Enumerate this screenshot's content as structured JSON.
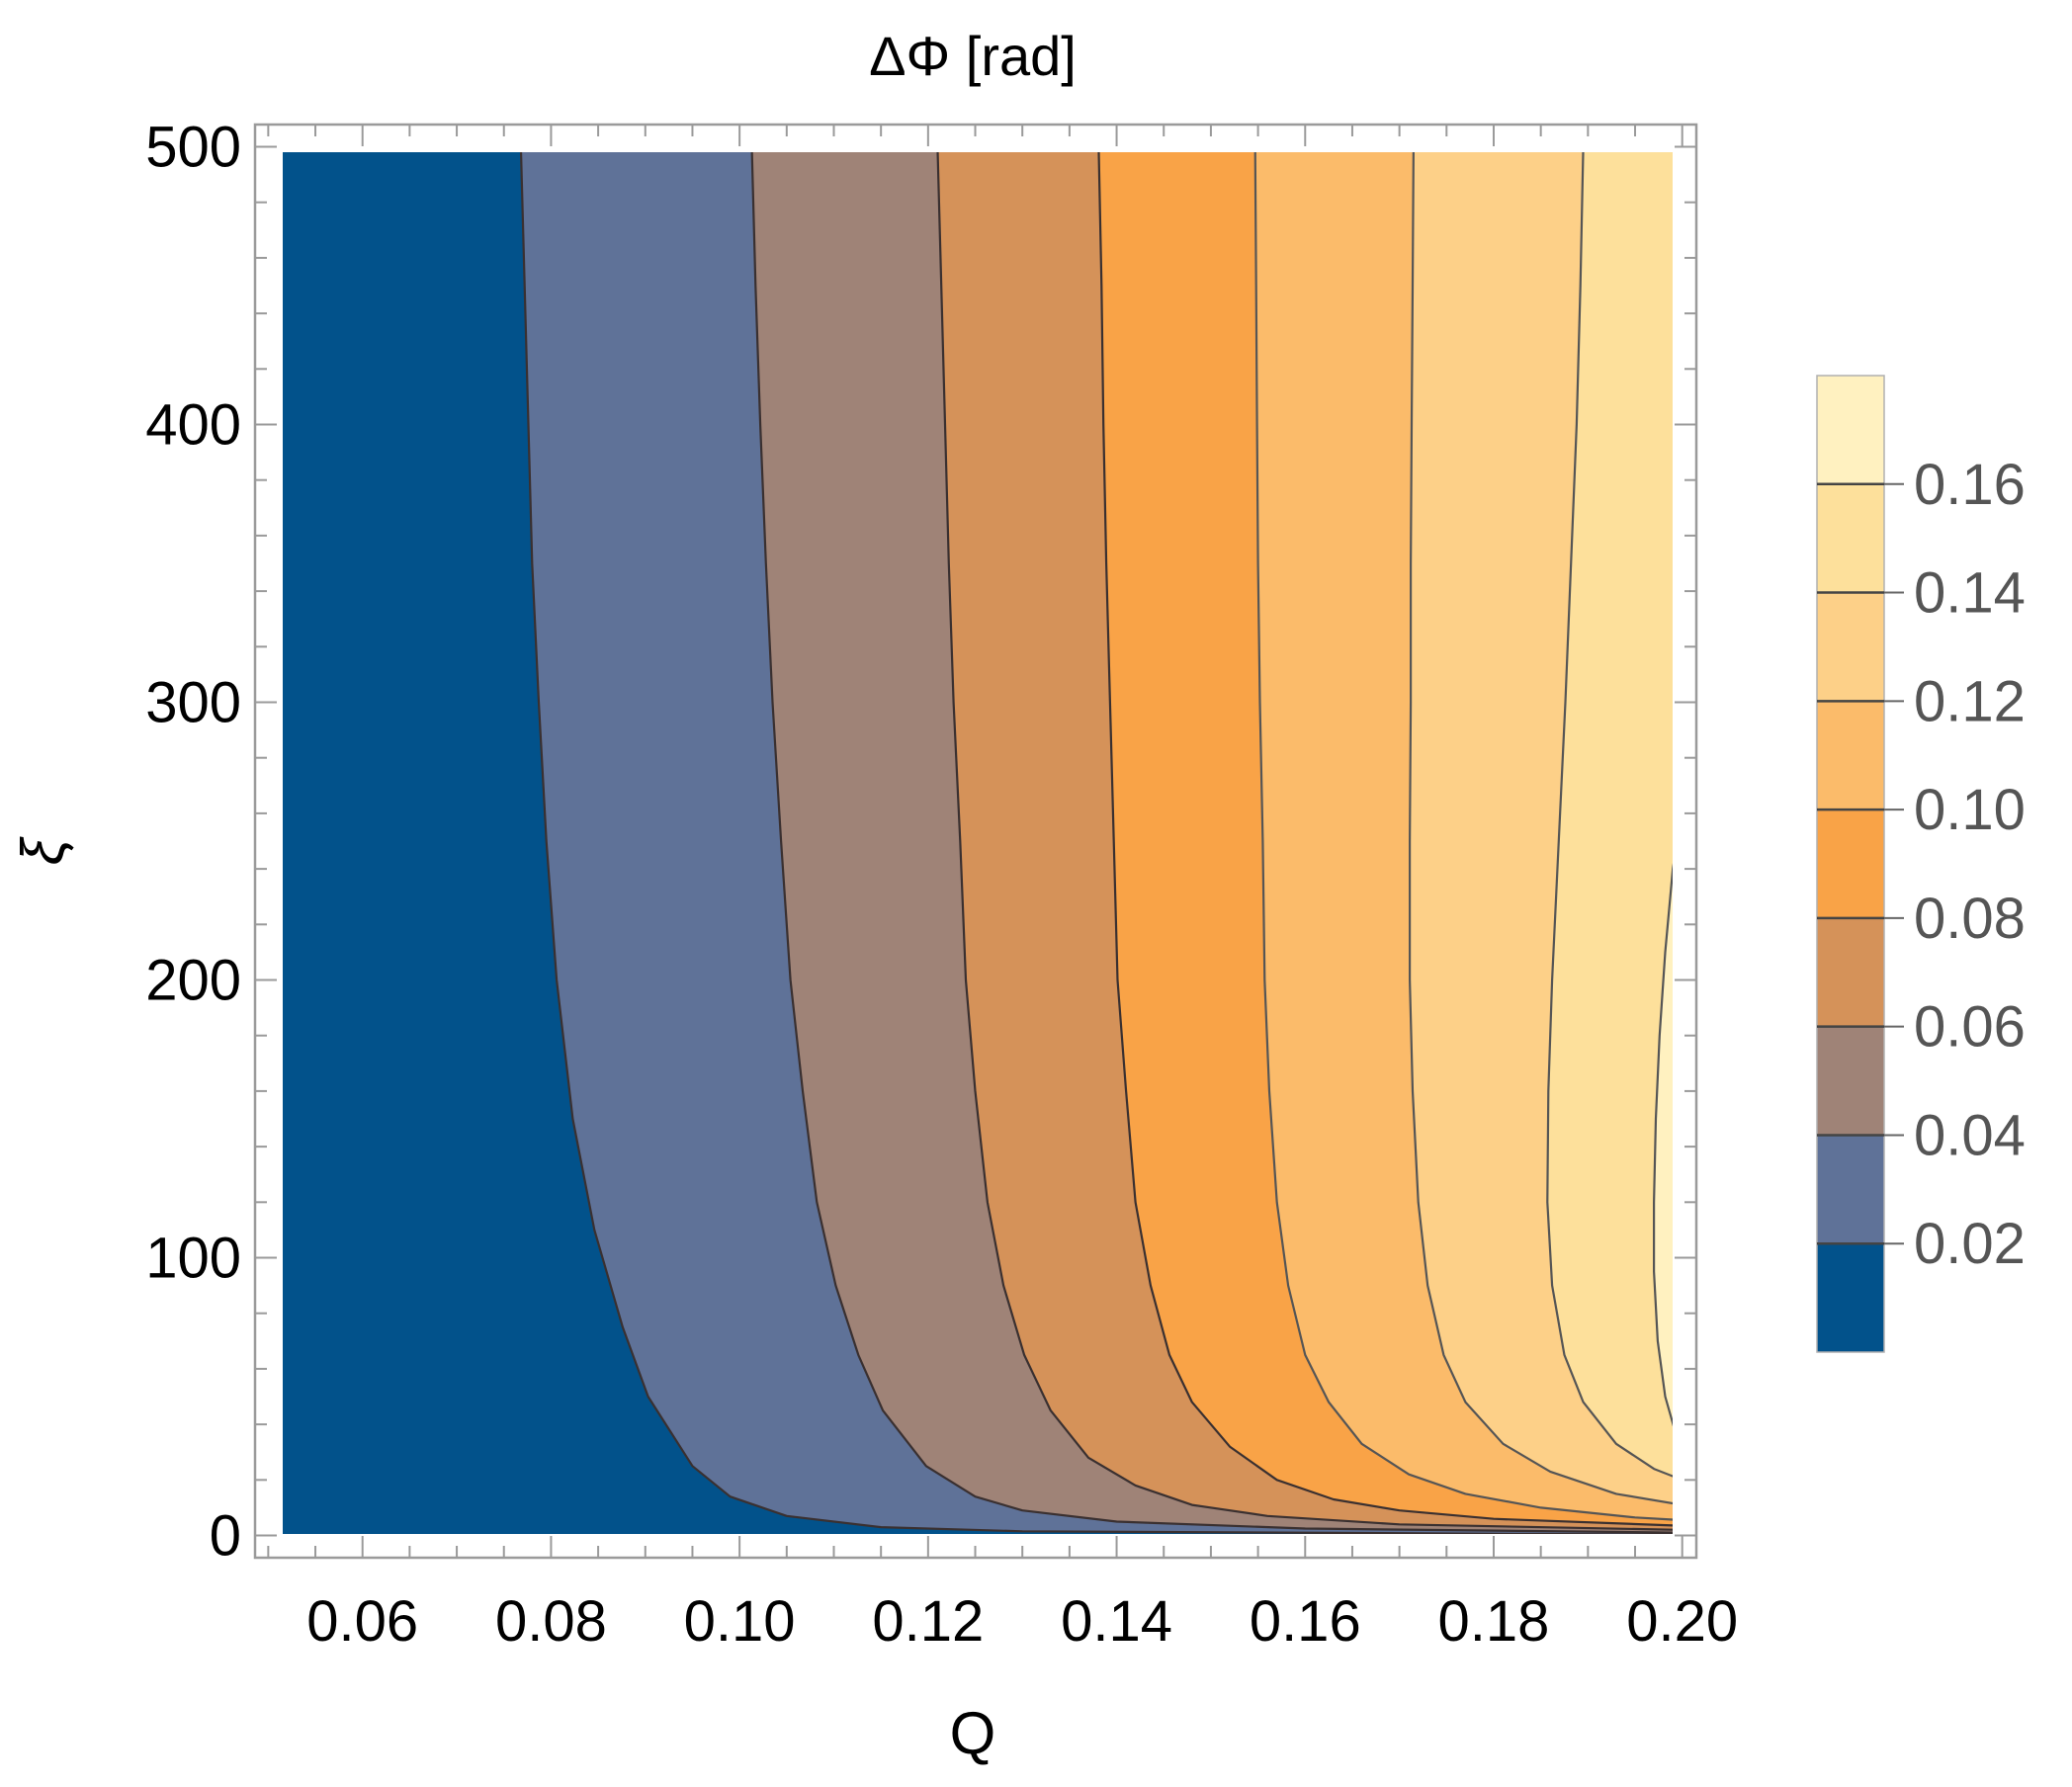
{
  "chart_data": {
    "type": "contour",
    "title": "ΔΦ [rad]",
    "xlabel": "Q",
    "ylabel": "ξ",
    "xlim": [
      0.0486,
      0.2015
    ],
    "ylim": [
      -8,
      508
    ],
    "data_xlim": [
      0.05,
      0.2
    ],
    "data_ylim": [
      0,
      500
    ],
    "xticks": [
      0.06,
      0.08,
      0.1,
      0.12,
      0.14,
      0.16,
      0.18,
      0.2
    ],
    "xtick_labels": [
      "0.06",
      "0.08",
      "0.10",
      "0.12",
      "0.14",
      "0.16",
      "0.18",
      "0.20"
    ],
    "yticks": [
      0,
      100,
      200,
      300,
      400,
      500
    ],
    "ytick_labels": [
      "0",
      "100",
      "200",
      "300",
      "400",
      "500"
    ],
    "grid": false,
    "frame_ticks": "both sides",
    "colorbar": {
      "position": "right",
      "range": [
        0,
        0.18
      ],
      "ticks": [
        0.02,
        0.04,
        0.06,
        0.08,
        0.1,
        0.12,
        0.14,
        0.16
      ],
      "tick_labels": [
        "0.02",
        "0.04",
        "0.06",
        "0.08",
        "0.10",
        "0.12",
        "0.14",
        "0.16"
      ]
    },
    "levels": [
      0.02,
      0.04,
      0.06,
      0.08,
      0.1,
      0.12,
      0.14,
      0.16
    ],
    "band_colors": [
      "#02528b",
      "#5f7298",
      "#9f8377",
      "#d59259",
      "#f9a347",
      "#fbbb6a",
      "#fdd088",
      "#fde09b",
      "#fff1c0"
    ],
    "contours": [
      {
        "level": 0.02,
        "points": [
          [
            0.0768,
            500
          ],
          [
            0.0772,
            450
          ],
          [
            0.0776,
            400
          ],
          [
            0.078,
            350
          ],
          [
            0.0787,
            300
          ],
          [
            0.0795,
            250
          ],
          [
            0.0806,
            200
          ],
          [
            0.0823,
            150
          ],
          [
            0.0846,
            110
          ],
          [
            0.0876,
            75
          ],
          [
            0.0903,
            50
          ],
          [
            0.095,
            25
          ],
          [
            0.099,
            14
          ],
          [
            0.105,
            7
          ],
          [
            0.115,
            3
          ],
          [
            0.13,
            1.5
          ],
          [
            0.2,
            0.3
          ]
        ]
      },
      {
        "level": 0.04,
        "points": [
          [
            0.1013,
            500
          ],
          [
            0.1017,
            450
          ],
          [
            0.1022,
            400
          ],
          [
            0.1028,
            350
          ],
          [
            0.1035,
            300
          ],
          [
            0.1044,
            250
          ],
          [
            0.1054,
            200
          ],
          [
            0.1067,
            160
          ],
          [
            0.1082,
            120
          ],
          [
            0.1102,
            90
          ],
          [
            0.1126,
            65
          ],
          [
            0.1152,
            45
          ],
          [
            0.1198,
            25
          ],
          [
            0.125,
            14
          ],
          [
            0.13,
            9
          ],
          [
            0.14,
            5
          ],
          [
            0.16,
            2.5
          ],
          [
            0.2,
            1
          ]
        ]
      },
      {
        "level": 0.06,
        "points": [
          [
            0.121,
            500
          ],
          [
            0.1214,
            450
          ],
          [
            0.1218,
            400
          ],
          [
            0.1222,
            350
          ],
          [
            0.1227,
            300
          ],
          [
            0.1234,
            250
          ],
          [
            0.124,
            200
          ],
          [
            0.125,
            160
          ],
          [
            0.1263,
            120
          ],
          [
            0.128,
            90
          ],
          [
            0.1302,
            65
          ],
          [
            0.133,
            45
          ],
          [
            0.137,
            28
          ],
          [
            0.142,
            18
          ],
          [
            0.148,
            11
          ],
          [
            0.156,
            7
          ],
          [
            0.17,
            4
          ],
          [
            0.2,
            2
          ]
        ]
      },
      {
        "level": 0.08,
        "points": [
          [
            0.1381,
            500
          ],
          [
            0.1384,
            450
          ],
          [
            0.1386,
            400
          ],
          [
            0.1389,
            350
          ],
          [
            0.1393,
            300
          ],
          [
            0.1397,
            250
          ],
          [
            0.1401,
            200
          ],
          [
            0.141,
            160
          ],
          [
            0.142,
            120
          ],
          [
            0.1436,
            90
          ],
          [
            0.1456,
            65
          ],
          [
            0.148,
            48
          ],
          [
            0.152,
            32
          ],
          [
            0.157,
            20
          ],
          [
            0.163,
            13
          ],
          [
            0.17,
            9
          ],
          [
            0.18,
            6
          ],
          [
            0.2,
            3.5
          ]
        ]
      },
      {
        "level": 0.1,
        "points": [
          [
            0.1547,
            500
          ],
          [
            0.1548,
            450
          ],
          [
            0.1549,
            400
          ],
          [
            0.155,
            350
          ],
          [
            0.1552,
            300
          ],
          [
            0.1555,
            250
          ],
          [
            0.1557,
            200
          ],
          [
            0.1562,
            160
          ],
          [
            0.157,
            120
          ],
          [
            0.1582,
            90
          ],
          [
            0.16,
            65
          ],
          [
            0.1625,
            48
          ],
          [
            0.166,
            33
          ],
          [
            0.171,
            22
          ],
          [
            0.177,
            15
          ],
          [
            0.185,
            10
          ],
          [
            0.195,
            6.5
          ],
          [
            0.2,
            5.5
          ]
        ]
      },
      {
        "level": 0.12,
        "points": [
          [
            0.1715,
            500
          ],
          [
            0.1714,
            450
          ],
          [
            0.1713,
            400
          ],
          [
            0.1712,
            350
          ],
          [
            0.1712,
            300
          ],
          [
            0.1711,
            250
          ],
          [
            0.1711,
            200
          ],
          [
            0.1714,
            160
          ],
          [
            0.172,
            120
          ],
          [
            0.173,
            90
          ],
          [
            0.1747,
            65
          ],
          [
            0.177,
            48
          ],
          [
            0.181,
            33
          ],
          [
            0.186,
            23
          ],
          [
            0.193,
            15
          ],
          [
            0.2,
            11
          ]
        ]
      },
      {
        "level": 0.14,
        "points": [
          [
            0.1895,
            500
          ],
          [
            0.1892,
            450
          ],
          [
            0.1888,
            400
          ],
          [
            0.1882,
            350
          ],
          [
            0.1876,
            300
          ],
          [
            0.1869,
            250
          ],
          [
            0.1862,
            200
          ],
          [
            0.1858,
            160
          ],
          [
            0.1857,
            120
          ],
          [
            0.1862,
            90
          ],
          [
            0.1875,
            65
          ],
          [
            0.1895,
            48
          ],
          [
            0.193,
            33
          ],
          [
            0.197,
            24
          ],
          [
            0.2,
            20
          ]
        ]
      },
      {
        "level": 0.16,
        "points": [
          [
            0.2,
            262
          ],
          [
            0.199,
            240
          ],
          [
            0.1982,
            210
          ],
          [
            0.1976,
            180
          ],
          [
            0.1972,
            150
          ],
          [
            0.197,
            120
          ],
          [
            0.197,
            95
          ],
          [
            0.1974,
            70
          ],
          [
            0.1982,
            50
          ],
          [
            0.1992,
            38
          ],
          [
            0.2,
            32
          ]
        ]
      }
    ]
  }
}
